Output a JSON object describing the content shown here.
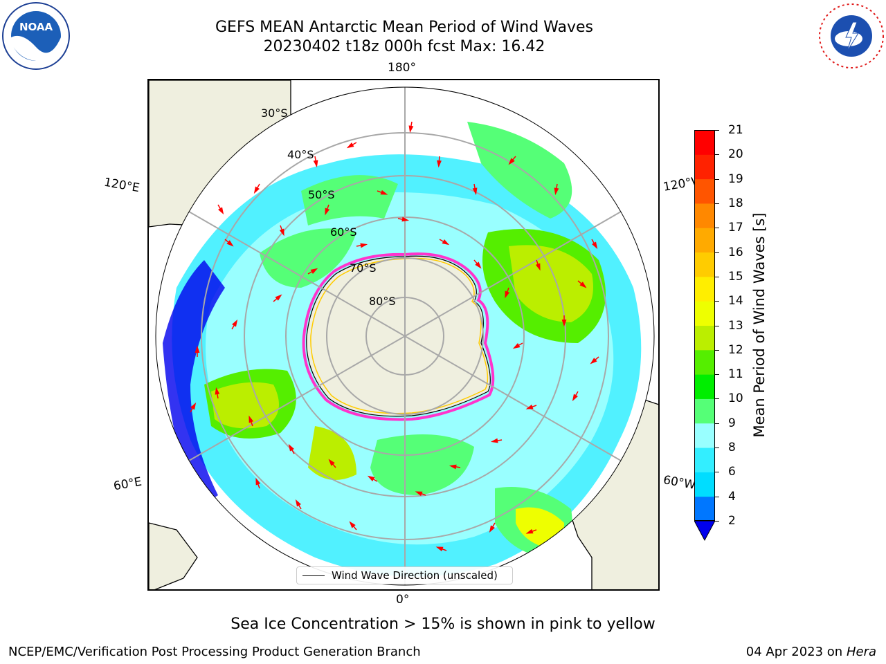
{
  "header": {
    "title_line1": "GEFS MEAN Antarctic Mean Period of Wind Waves",
    "title_line2": "20230402 t18z 000h fcst   Max: 16.42"
  },
  "logos": {
    "left": "NOAA",
    "right": "NATIONAL WEATHER SERVICE"
  },
  "map": {
    "projection": "south-polar-stereographic",
    "longitude_labels": {
      "top": "180°",
      "bottom": "0°",
      "left_upper": "120°E",
      "right_upper": "120°W",
      "left_lower": "60°E",
      "right_lower": "60°W"
    },
    "latitude_labels": [
      "30°S",
      "40°S",
      "50°S",
      "60°S",
      "70°S",
      "80°S"
    ],
    "legend_label": "Wind Wave Direction (unscaled)",
    "arrow_color": "#ff0000",
    "ice_edge_colors": [
      "#ff33cc",
      "#ffcc00"
    ]
  },
  "colorbar": {
    "label": "Mean Period of Wind Waves [s]",
    "ticks": [
      "2",
      "4",
      "6",
      "8",
      "9",
      "10",
      "11",
      "12",
      "13",
      "14",
      "15",
      "16",
      "17",
      "18",
      "19",
      "20",
      "21"
    ],
    "colors": [
      "#0000ee",
      "#0077ff",
      "#00ddff",
      "#33eeff",
      "#99ffff",
      "#55ff77",
      "#00ee00",
      "#55ee00",
      "#bbee00",
      "#eeff00",
      "#ffee00",
      "#ffcc00",
      "#ffaa00",
      "#ff8800",
      "#ff5500",
      "#ff2200",
      "#ff0000"
    ],
    "extend_min_color": "#0000ee"
  },
  "footer": {
    "note": "Sea Ice Concentration > 15% is shown in pink to yellow",
    "credit": "NCEP/EMC/Verification Post Processing Product Generation Branch",
    "date": "04 Apr 2023 on ",
    "host": "Hera"
  }
}
